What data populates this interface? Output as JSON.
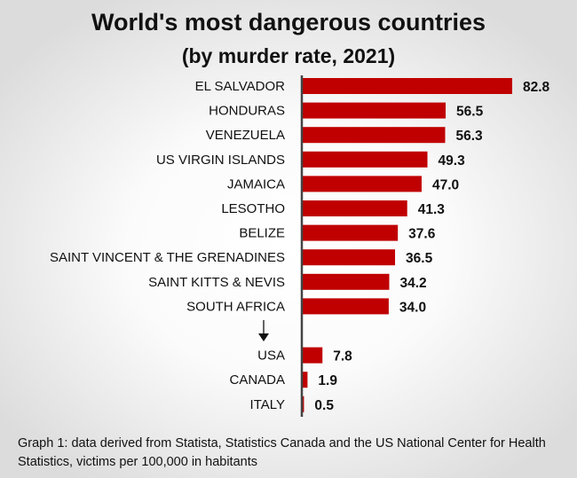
{
  "chart_data": {
    "type": "bar",
    "orientation": "horizontal",
    "title": "World's most dangerous countries",
    "subtitle": "(by murder rate, 2021)",
    "categories": [
      "EL SALVADOR",
      "HONDURAS",
      "VENEZUELA",
      "US VIRGIN ISLANDS",
      "JAMAICA",
      "LESOTHO",
      "BELIZE",
      "SAINT VINCENT & THE GRENADINES",
      "SAINT KITTS & NEVIS",
      "SOUTH AFRICA",
      "USA",
      "CANADA",
      "ITALY"
    ],
    "values": [
      82.8,
      56.5,
      56.3,
      49.3,
      47.0,
      41.3,
      37.6,
      36.5,
      34.2,
      34.0,
      7.8,
      1.9,
      0.5
    ],
    "value_labels": [
      "82.8",
      "56.5",
      "56.3",
      "49.3",
      "47.0",
      "41.3",
      "37.6",
      "36.5",
      "34.2",
      "34.0",
      "7.8",
      "1.9",
      "0.5"
    ],
    "gap_after_index": 9,
    "xlim": [
      0,
      85
    ],
    "grid": false,
    "bar_color": "#c00000",
    "annotations": [
      "down-arrow separating top 10 from comparison countries"
    ]
  },
  "caption": "Graph 1: data derived from Statista, Statistics Canada and the US  National Center for Health Statistics, victims per 100,000 in habitants"
}
